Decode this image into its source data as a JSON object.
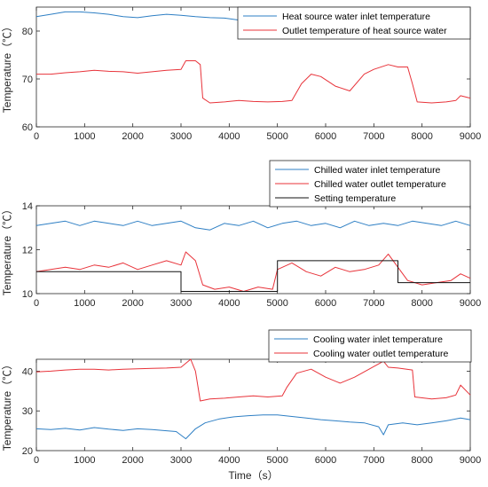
{
  "colors": {
    "blue": "#2e7fc4",
    "red": "#e8333a",
    "black": "#111111"
  },
  "chart_data": [
    {
      "type": "line",
      "xlim": [
        0,
        9000
      ],
      "ylim": [
        60,
        85
      ],
      "yticks": [
        60,
        70,
        80
      ],
      "xticks": [
        0,
        1000,
        2000,
        3000,
        4000,
        5000,
        6000,
        7000,
        8000,
        9000
      ],
      "xlabel": "",
      "ylabel": "Temperature（℃）",
      "legend_position": "top-right",
      "series": [
        {
          "name": "Heat source water inlet temperature",
          "color": "blue",
          "x": [
            0,
            300,
            600,
            900,
            1200,
            1500,
            1800,
            2100,
            2400,
            2700,
            3000,
            3300,
            3600,
            3900,
            4200,
            4500,
            4800,
            5100,
            5400,
            5700,
            6000,
            6300,
            6600,
            6900,
            7200,
            7500,
            7800,
            8100,
            8400,
            8700,
            9000
          ],
          "values": [
            83,
            83.5,
            84,
            84,
            83.8,
            83.5,
            83,
            82.8,
            83.2,
            83.5,
            83.3,
            83,
            82.8,
            82.7,
            82.3,
            81.8,
            81.3,
            81.7,
            82.5,
            83,
            83.3,
            83.8,
            84,
            83.7,
            83.5,
            83.3,
            82.5,
            82,
            81.8,
            82,
            82.5
          ]
        },
        {
          "name": "Outlet temperature of heat source water",
          "color": "red",
          "x": [
            0,
            300,
            600,
            900,
            1200,
            1500,
            1800,
            2100,
            2400,
            2700,
            3000,
            3100,
            3300,
            3400,
            3450,
            3600,
            3900,
            4200,
            4500,
            4800,
            5100,
            5300,
            5500,
            5700,
            5900,
            6200,
            6500,
            6800,
            7000,
            7300,
            7500,
            7700,
            7800,
            7900,
            8200,
            8500,
            8700,
            8800,
            9000
          ],
          "values": [
            71,
            71,
            71.3,
            71.5,
            71.8,
            71.6,
            71.5,
            71.2,
            71.5,
            71.8,
            72,
            73.8,
            73.8,
            73,
            66,
            65,
            65.2,
            65.5,
            65.3,
            65.2,
            65.3,
            65.5,
            69,
            71,
            70.5,
            68.5,
            67.5,
            71,
            72,
            73,
            72.5,
            72.5,
            69,
            65.2,
            65,
            65.2,
            65.5,
            66.5,
            66
          ]
        }
      ]
    },
    {
      "type": "line",
      "xlim": [
        0,
        9000
      ],
      "ylim": [
        10,
        14
      ],
      "yticks": [
        10,
        12,
        14
      ],
      "xticks": [
        0,
        1000,
        2000,
        3000,
        4000,
        5000,
        6000,
        7000,
        8000,
        9000
      ],
      "xlabel": "",
      "ylabel": "Temperature（℃）",
      "legend_position": "top-right",
      "series": [
        {
          "name": "Chilled water inlet temperature",
          "color": "blue",
          "x": [
            0,
            300,
            600,
            900,
            1200,
            1500,
            1800,
            2100,
            2400,
            2700,
            3000,
            3300,
            3600,
            3900,
            4200,
            4500,
            4800,
            5100,
            5400,
            5700,
            6000,
            6300,
            6600,
            6900,
            7200,
            7500,
            7800,
            8100,
            8400,
            8700,
            9000
          ],
          "values": [
            13.1,
            13.2,
            13.3,
            13.1,
            13.3,
            13.2,
            13.1,
            13.3,
            13.1,
            13.2,
            13.3,
            13.0,
            12.9,
            13.2,
            13.1,
            13.3,
            13.0,
            13.2,
            13.3,
            13.1,
            13.2,
            13.0,
            13.3,
            13.1,
            13.2,
            13.1,
            13.3,
            13.2,
            13.1,
            13.3,
            13.1
          ]
        },
        {
          "name": "Chilled water outlet temperature",
          "color": "red",
          "x": [
            0,
            300,
            600,
            900,
            1200,
            1500,
            1800,
            2100,
            2400,
            2700,
            3000,
            3100,
            3300,
            3450,
            3700,
            4000,
            4300,
            4600,
            4900,
            5000,
            5300,
            5600,
            5900,
            6200,
            6500,
            6800,
            7100,
            7300,
            7500,
            7700,
            8000,
            8300,
            8600,
            8800,
            9000
          ],
          "values": [
            11.0,
            11.1,
            11.2,
            11.1,
            11.3,
            11.2,
            11.4,
            11.1,
            11.3,
            11.5,
            11.3,
            11.9,
            11.5,
            10.4,
            10.2,
            10.3,
            10.1,
            10.3,
            10.2,
            11.1,
            11.4,
            11.0,
            10.8,
            11.2,
            11.0,
            11.1,
            11.3,
            11.8,
            11.2,
            10.6,
            10.4,
            10.5,
            10.6,
            10.9,
            10.7
          ]
        },
        {
          "name": "Setting temperature",
          "color": "black",
          "x": [
            0,
            3000,
            3000,
            5000,
            5000,
            7500,
            7500,
            9000
          ],
          "values": [
            11.0,
            11.0,
            10.1,
            10.1,
            11.5,
            11.5,
            10.5,
            10.5
          ]
        }
      ]
    },
    {
      "type": "line",
      "xlim": [
        0,
        9000
      ],
      "ylim": [
        20,
        43
      ],
      "yticks": [
        20,
        30,
        40
      ],
      "xticks": [
        0,
        1000,
        2000,
        3000,
        4000,
        5000,
        6000,
        7000,
        8000,
        9000
      ],
      "xlabel": "Time（s）",
      "ylabel": "Temperature（℃）",
      "legend_position": "top-right",
      "series": [
        {
          "name": "Cooling water inlet temperature",
          "color": "blue",
          "x": [
            0,
            300,
            600,
            900,
            1200,
            1500,
            1800,
            2100,
            2400,
            2700,
            2900,
            3100,
            3300,
            3500,
            3800,
            4100,
            4400,
            4700,
            5000,
            5300,
            5600,
            5900,
            6200,
            6500,
            6800,
            7100,
            7200,
            7300,
            7600,
            7900,
            8200,
            8500,
            8800,
            9000
          ],
          "values": [
            25.5,
            25.3,
            25.6,
            25.2,
            25.8,
            25.4,
            25.1,
            25.5,
            25.3,
            25.0,
            24.8,
            23.0,
            25.5,
            27.0,
            28.0,
            28.5,
            28.8,
            29.0,
            29.0,
            28.6,
            28.2,
            27.8,
            27.5,
            27.2,
            27.0,
            26.0,
            24.0,
            26.5,
            27.0,
            26.5,
            27.0,
            27.5,
            28.2,
            27.8
          ]
        },
        {
          "name": "Cooling water outlet temperature",
          "color": "red",
          "x": [
            0,
            300,
            600,
            900,
            1200,
            1500,
            1800,
            2100,
            2400,
            2700,
            3000,
            3200,
            3300,
            3400,
            3600,
            3900,
            4200,
            4500,
            4800,
            5100,
            5200,
            5400,
            5700,
            6000,
            6300,
            6600,
            6900,
            7200,
            7300,
            7500,
            7800,
            7850,
            8200,
            8500,
            8700,
            8800,
            9000
          ],
          "values": [
            39.8,
            40.0,
            40.3,
            40.5,
            40.5,
            40.3,
            40.5,
            40.6,
            40.7,
            40.8,
            41.0,
            43.0,
            40.0,
            32.5,
            33.0,
            33.2,
            33.5,
            33.8,
            33.5,
            33.8,
            36.0,
            39.5,
            40.5,
            38.5,
            37.0,
            38.5,
            40.5,
            42.5,
            41.0,
            40.8,
            40.3,
            33.5,
            33.0,
            33.3,
            34.0,
            36.5,
            34.0
          ]
        }
      ]
    }
  ]
}
